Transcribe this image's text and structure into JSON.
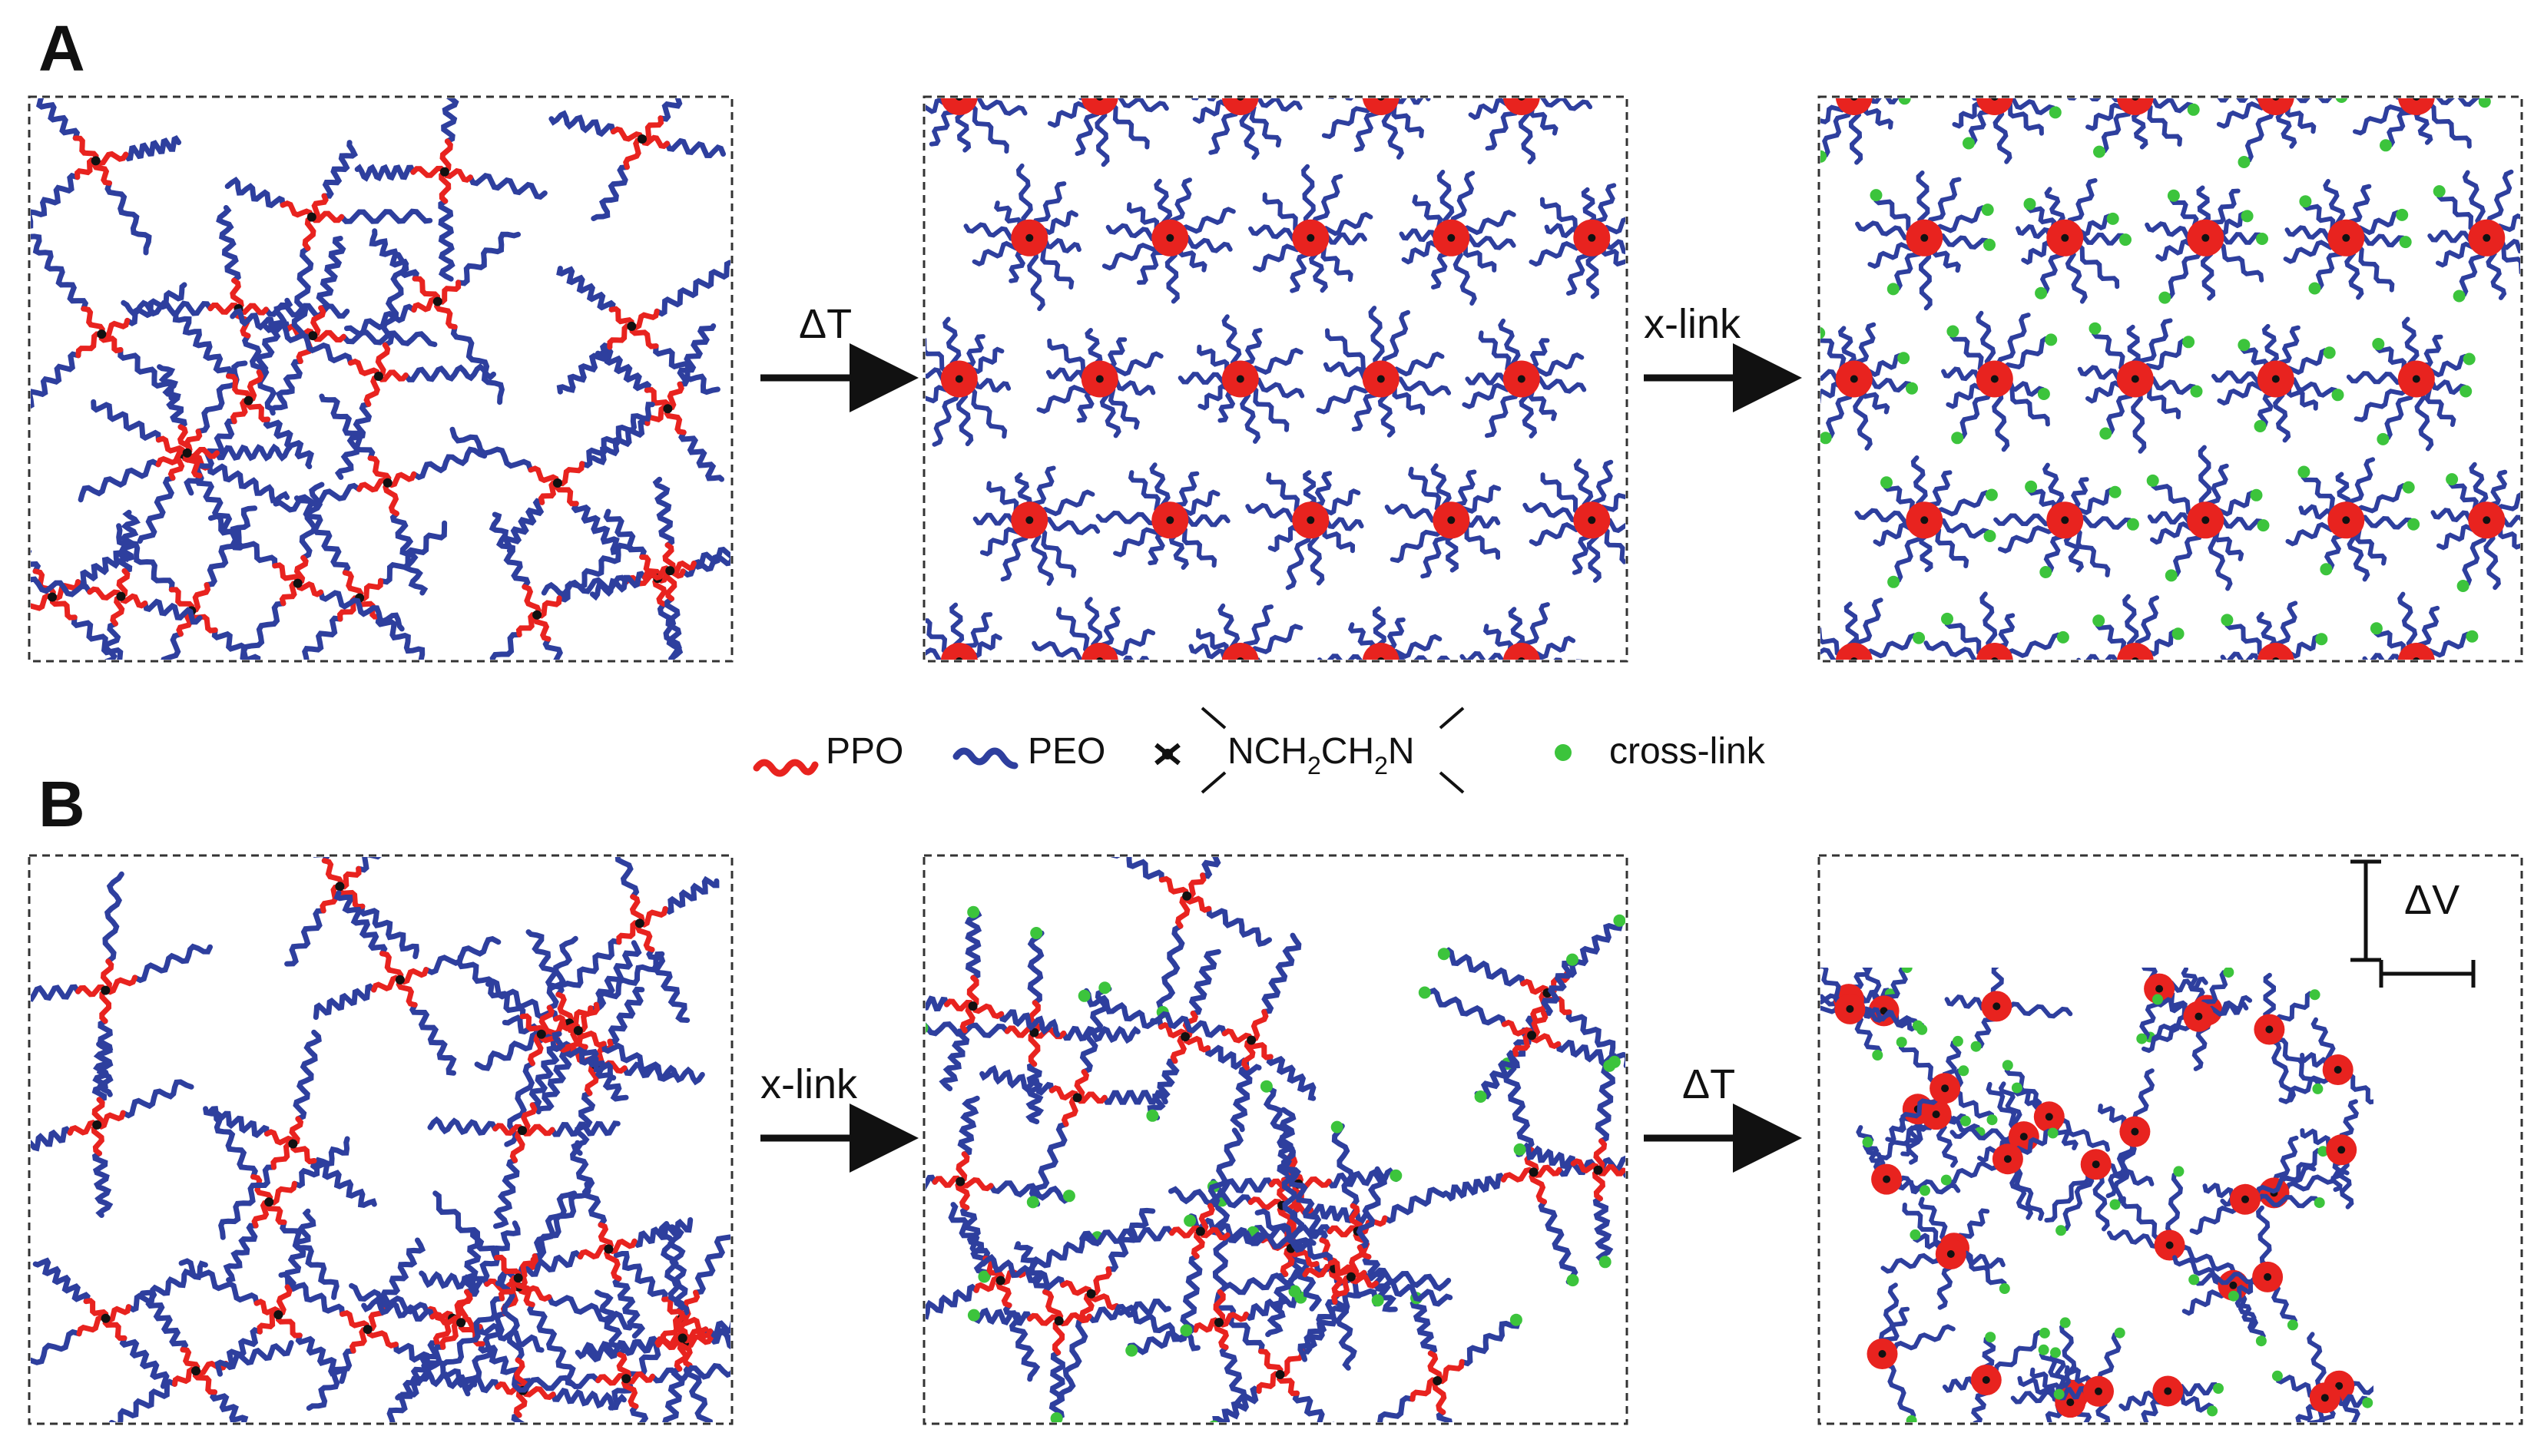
{
  "panels": {
    "A": {
      "letter": "A",
      "arrow1_label": "ΔT",
      "arrow2_label": "x-link"
    },
    "B": {
      "letter": "B",
      "arrow1_label": "x-link",
      "arrow2_label": "ΔT",
      "volume_label": "ΔV"
    }
  },
  "legend": {
    "ppo": "PPO",
    "peo": "PEO",
    "linker_prefix": "NCH",
    "linker_sub1": "2",
    "linker_mid": "CH",
    "linker_sub2": "2",
    "linker_suffix": "N",
    "crosslink": "cross-link"
  },
  "colors": {
    "ppo": "#e8231f",
    "peo": "#2e3f9e",
    "crosslink": "#3cc43c",
    "core": "#111111"
  }
}
